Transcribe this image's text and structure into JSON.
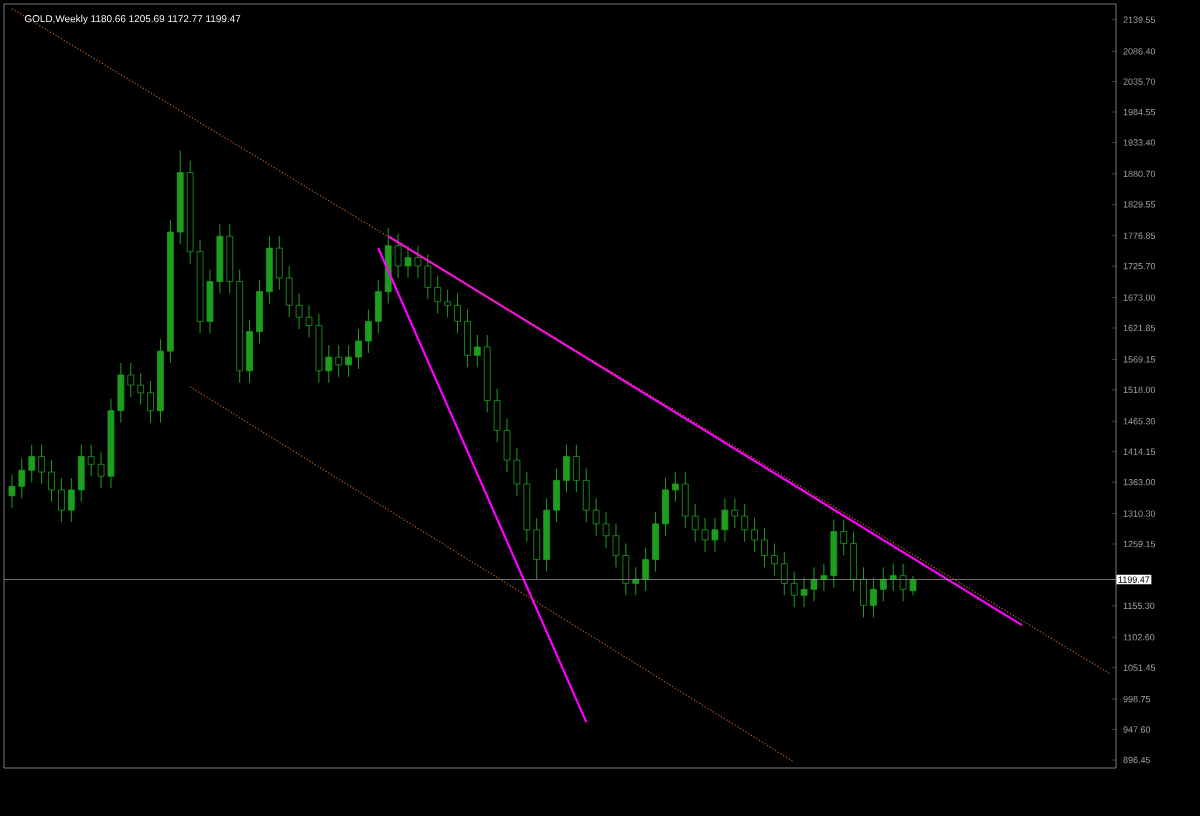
{
  "chart_data": {
    "type": "candlestick",
    "title": "GOLD,Weekly  1180.66 1205.69 1172.77 1199.47",
    "color": "#1e9e1e",
    "categories": [
      null,
      null,
      null,
      null,
      null,
      null,
      null,
      null,
      null,
      null,
      null,
      null,
      null,
      null,
      null,
      null,
      null,
      null,
      null,
      null,
      null,
      null,
      null,
      null,
      null,
      null,
      null,
      null,
      null,
      null,
      null,
      null,
      null,
      null,
      null,
      null,
      null,
      null,
      null,
      null,
      null,
      null,
      null,
      null,
      null,
      null,
      null,
      null,
      null,
      null,
      null,
      null,
      null,
      null,
      null,
      null,
      null,
      null,
      null,
      null,
      null,
      null,
      null,
      null,
      null,
      null,
      null,
      null,
      null,
      null,
      null,
      null,
      null,
      null,
      null,
      null,
      null,
      null,
      null,
      null,
      null,
      null,
      null,
      null,
      null,
      null,
      null,
      null,
      null,
      null,
      null,
      null,
      null,
      null,
      null,
      null,
      null,
      null,
      null,
      null,
      null,
      null,
      null,
      null,
      null,
      null,
      null,
      null,
      null,
      null,
      null,
      null
    ],
    "ohlc": [
      [
        1340,
        1376,
        1320,
        1356
      ],
      [
        1356,
        1403,
        1336,
        1383
      ],
      [
        1383,
        1426,
        1363,
        1406
      ],
      [
        1406,
        1426,
        1360,
        1380
      ],
      [
        1380,
        1400,
        1330,
        1350
      ],
      [
        1350,
        1370,
        1296,
        1316
      ],
      [
        1316,
        1370,
        1296,
        1350
      ],
      [
        1350,
        1426,
        1330,
        1406
      ],
      [
        1406,
        1426,
        1373,
        1393
      ],
      [
        1393,
        1413,
        1353,
        1373
      ],
      [
        1373,
        1503,
        1353,
        1483
      ],
      [
        1483,
        1563,
        1463,
        1543
      ],
      [
        1543,
        1563,
        1506,
        1526
      ],
      [
        1526,
        1546,
        1493,
        1513
      ],
      [
        1513,
        1533,
        1463,
        1483
      ],
      [
        1483,
        1603,
        1463,
        1583
      ],
      [
        1583,
        1803,
        1563,
        1783
      ],
      [
        1783,
        1920,
        1763,
        1883
      ],
      [
        1883,
        1903,
        1730,
        1750
      ],
      [
        1750,
        1770,
        1613,
        1633
      ],
      [
        1633,
        1720,
        1613,
        1700
      ],
      [
        1700,
        1796,
        1680,
        1776
      ],
      [
        1776,
        1796,
        1680,
        1700
      ],
      [
        1700,
        1720,
        1530,
        1550
      ],
      [
        1550,
        1636,
        1530,
        1616
      ],
      [
        1616,
        1703,
        1596,
        1683
      ],
      [
        1683,
        1776,
        1663,
        1756
      ],
      [
        1756,
        1776,
        1686,
        1706
      ],
      [
        1706,
        1726,
        1640,
        1660
      ],
      [
        1660,
        1680,
        1620,
        1640
      ],
      [
        1640,
        1660,
        1606,
        1626
      ],
      [
        1626,
        1646,
        1530,
        1550
      ],
      [
        1550,
        1593,
        1530,
        1573
      ],
      [
        1573,
        1593,
        1540,
        1560
      ],
      [
        1560,
        1593,
        1540,
        1573
      ],
      [
        1573,
        1620,
        1553,
        1600
      ],
      [
        1600,
        1653,
        1580,
        1633
      ],
      [
        1633,
        1703,
        1613,
        1683
      ],
      [
        1683,
        1790,
        1663,
        1760
      ],
      [
        1760,
        1780,
        1706,
        1726
      ],
      [
        1726,
        1760,
        1706,
        1740
      ],
      [
        1740,
        1760,
        1706,
        1726
      ],
      [
        1726,
        1746,
        1670,
        1690
      ],
      [
        1690,
        1710,
        1646,
        1666
      ],
      [
        1666,
        1686,
        1640,
        1660
      ],
      [
        1660,
        1680,
        1613,
        1633
      ],
      [
        1633,
        1653,
        1556,
        1576
      ],
      [
        1576,
        1610,
        1556,
        1590
      ],
      [
        1590,
        1610,
        1480,
        1500
      ],
      [
        1500,
        1520,
        1430,
        1450
      ],
      [
        1450,
        1470,
        1380,
        1400
      ],
      [
        1400,
        1420,
        1340,
        1360
      ],
      [
        1360,
        1380,
        1263,
        1283
      ],
      [
        1283,
        1303,
        1200,
        1233
      ],
      [
        1233,
        1336,
        1213,
        1316
      ],
      [
        1316,
        1386,
        1296,
        1366
      ],
      [
        1366,
        1426,
        1346,
        1406
      ],
      [
        1406,
        1426,
        1346,
        1366
      ],
      [
        1366,
        1386,
        1296,
        1316
      ],
      [
        1316,
        1336,
        1273,
        1293
      ],
      [
        1293,
        1313,
        1253,
        1273
      ],
      [
        1273,
        1293,
        1220,
        1240
      ],
      [
        1240,
        1260,
        1173,
        1193
      ],
      [
        1193,
        1220,
        1173,
        1200
      ],
      [
        1200,
        1253,
        1180,
        1233
      ],
      [
        1233,
        1313,
        1213,
        1293
      ],
      [
        1293,
        1370,
        1273,
        1350
      ],
      [
        1350,
        1380,
        1330,
        1360
      ],
      [
        1360,
        1380,
        1286,
        1306
      ],
      [
        1306,
        1326,
        1263,
        1283
      ],
      [
        1283,
        1303,
        1246,
        1266
      ],
      [
        1266,
        1303,
        1246,
        1283
      ],
      [
        1283,
        1336,
        1263,
        1316
      ],
      [
        1316,
        1336,
        1286,
        1306
      ],
      [
        1306,
        1326,
        1263,
        1283
      ],
      [
        1283,
        1303,
        1246,
        1266
      ],
      [
        1266,
        1286,
        1220,
        1240
      ],
      [
        1240,
        1260,
        1206,
        1226
      ],
      [
        1226,
        1246,
        1173,
        1193
      ],
      [
        1193,
        1213,
        1153,
        1173
      ],
      [
        1173,
        1203,
        1153,
        1183
      ],
      [
        1183,
        1220,
        1163,
        1200
      ],
      [
        1200,
        1226,
        1180,
        1206
      ],
      [
        1206,
        1300,
        1186,
        1280
      ],
      [
        1280,
        1300,
        1240,
        1260
      ],
      [
        1260,
        1280,
        1180,
        1200
      ],
      [
        1200,
        1220,
        1136,
        1156
      ],
      [
        1156,
        1203,
        1136,
        1183
      ],
      [
        1183,
        1220,
        1163,
        1200
      ],
      [
        1200,
        1226,
        1180,
        1206
      ],
      [
        1206,
        1226,
        1163,
        1183
      ],
      [
        1180.66,
        1205.69,
        1172.77,
        1199.47
      ],
      null,
      null,
      null,
      null,
      null,
      null,
      null,
      null,
      null,
      null,
      null,
      null,
      null,
      null,
      null,
      null,
      null,
      null,
      null,
      null
    ],
    "series": [
      {
        "type": "line",
        "color": "#ff00ff",
        "line_style": "solid",
        "values": [
          null,
          null,
          null,
          null,
          null,
          null,
          null,
          null,
          null,
          null,
          null,
          null,
          null,
          null,
          null,
          null,
          null,
          null,
          null,
          null,
          null,
          null,
          null,
          null,
          null,
          null,
          null,
          null,
          null,
          null,
          null,
          null,
          null,
          null,
          null,
          null,
          null,
          null,
          1776,
          null,
          null,
          null,
          null,
          null,
          null,
          null,
          null,
          null,
          null,
          null,
          null,
          null,
          null,
          null,
          null,
          null,
          null,
          null,
          null,
          null,
          null,
          null,
          null,
          null,
          null,
          null,
          null,
          null,
          null,
          null,
          null,
          null,
          null,
          null,
          null,
          null,
          null,
          null,
          null,
          null,
          null,
          null,
          null,
          null,
          null,
          null,
          null,
          null,
          null,
          null,
          null,
          null,
          null,
          null,
          null,
          null,
          null,
          null,
          null,
          null,
          null,
          null,
          1123,
          null,
          null,
          null,
          null,
          null,
          null,
          null,
          null,
          null
        ]
      },
      {
        "type": "line",
        "color": "#ff00ff",
        "line_style": "solid",
        "values": [
          null,
          null,
          null,
          null,
          null,
          null,
          null,
          null,
          null,
          null,
          null,
          null,
          null,
          null,
          null,
          null,
          null,
          null,
          null,
          null,
          null,
          null,
          null,
          null,
          null,
          null,
          null,
          null,
          null,
          null,
          null,
          null,
          null,
          null,
          null,
          null,
          null,
          1756,
          null,
          null,
          null,
          null,
          null,
          null,
          null,
          null,
          null,
          null,
          null,
          null,
          null,
          null,
          null,
          null,
          null,
          null,
          null,
          null,
          960,
          null,
          null,
          null,
          null,
          null,
          null,
          null,
          null,
          null,
          null,
          null,
          null,
          null,
          null,
          null,
          null,
          null,
          null,
          null,
          null,
          null,
          null,
          null,
          null,
          null,
          null,
          null,
          null,
          null,
          null,
          null,
          null,
          null,
          null,
          null,
          null,
          null,
          null,
          null,
          null,
          null,
          null,
          null,
          null,
          null,
          null,
          null,
          null,
          null,
          null,
          null,
          null,
          null
        ]
      },
      {
        "type": "line",
        "color": "#c0601c",
        "line_style": "dotted",
        "values": [
          2158,
          null,
          null,
          null,
          null,
          null,
          null,
          null,
          null,
          null,
          null,
          null,
          null,
          null,
          null,
          null,
          null,
          null,
          null,
          null,
          null,
          null,
          null,
          null,
          null,
          null,
          null,
          null,
          null,
          null,
          null,
          null,
          null,
          null,
          null,
          null,
          null,
          null,
          null,
          null,
          null,
          null,
          null,
          null,
          null,
          null,
          null,
          null,
          null,
          null,
          null,
          null,
          null,
          null,
          null,
          null,
          null,
          null,
          null,
          null,
          null,
          null,
          null,
          null,
          null,
          null,
          null,
          null,
          null,
          null,
          null,
          null,
          null,
          null,
          null,
          null,
          null,
          null,
          null,
          null,
          null,
          null,
          null,
          null,
          null,
          null,
          null,
          null,
          null,
          null,
          null,
          null,
          null,
          null,
          null,
          null,
          null,
          null,
          null,
          null,
          null,
          null,
          null,
          null,
          null,
          null,
          null,
          null,
          null,
          null,
          null,
          1040
        ]
      },
      {
        "type": "line",
        "color": "#c0601c",
        "line_style": "dotted",
        "values": [
          null,
          null,
          null,
          null,
          null,
          null,
          null,
          null,
          null,
          null,
          null,
          null,
          null,
          null,
          null,
          null,
          null,
          null,
          1523,
          null,
          null,
          null,
          null,
          null,
          null,
          null,
          null,
          null,
          null,
          null,
          null,
          null,
          null,
          null,
          null,
          null,
          null,
          null,
          null,
          null,
          null,
          null,
          null,
          null,
          null,
          null,
          null,
          null,
          null,
          null,
          null,
          null,
          null,
          null,
          null,
          null,
          null,
          null,
          null,
          null,
          null,
          null,
          null,
          null,
          null,
          null,
          null,
          null,
          null,
          null,
          null,
          null,
          null,
          null,
          null,
          null,
          null,
          null,
          null,
          893,
          null,
          null,
          null,
          null,
          null,
          null,
          null,
          null,
          null,
          null,
          null,
          null,
          null,
          null,
          null,
          null,
          null,
          null,
          null,
          null,
          null,
          null,
          null,
          null,
          null,
          null,
          null,
          null,
          null,
          null,
          null,
          null
        ]
      }
    ],
    "ylim": [
      883,
      2166
    ],
    "yticks": [
      896.45,
      {
        "value": 947.6,
        "label": "947.60"
      },
      998.75,
      1051.45,
      {
        "value": 1102.6,
        "label": "1102.60"
      },
      {
        "value": 1155.3,
        "label": "1155.30"
      },
      1259.15,
      {
        "value": 1310.3,
        "label": "1310.30"
      },
      {
        "value": 1363,
        "label": "1363.00"
      },
      1414.15,
      {
        "value": 1465.3,
        "label": "1465.30"
      },
      {
        "value": 1518,
        "label": "1518.00"
      },
      1569.15,
      1621.85,
      {
        "value": 1673,
        "label": "1673.00"
      },
      {
        "value": 1725.7,
        "label": "1725.70"
      },
      1776.85,
      1829.55,
      {
        "value": 1880.7,
        "label": "1880.70"
      },
      {
        "value": 1933.4,
        "label": "1933.40"
      },
      1984.55,
      {
        "value": 2035.7,
        "label": "2035.70"
      },
      {
        "value": 2086.4,
        "label": "2086.40"
      },
      2139.55
    ],
    "ref_lines": [
      {
        "axis": "y",
        "value": 1199.47,
        "label": "1199.47",
        "color": "#909090"
      }
    ],
    "tick_labels": "y",
    "grid": false
  }
}
